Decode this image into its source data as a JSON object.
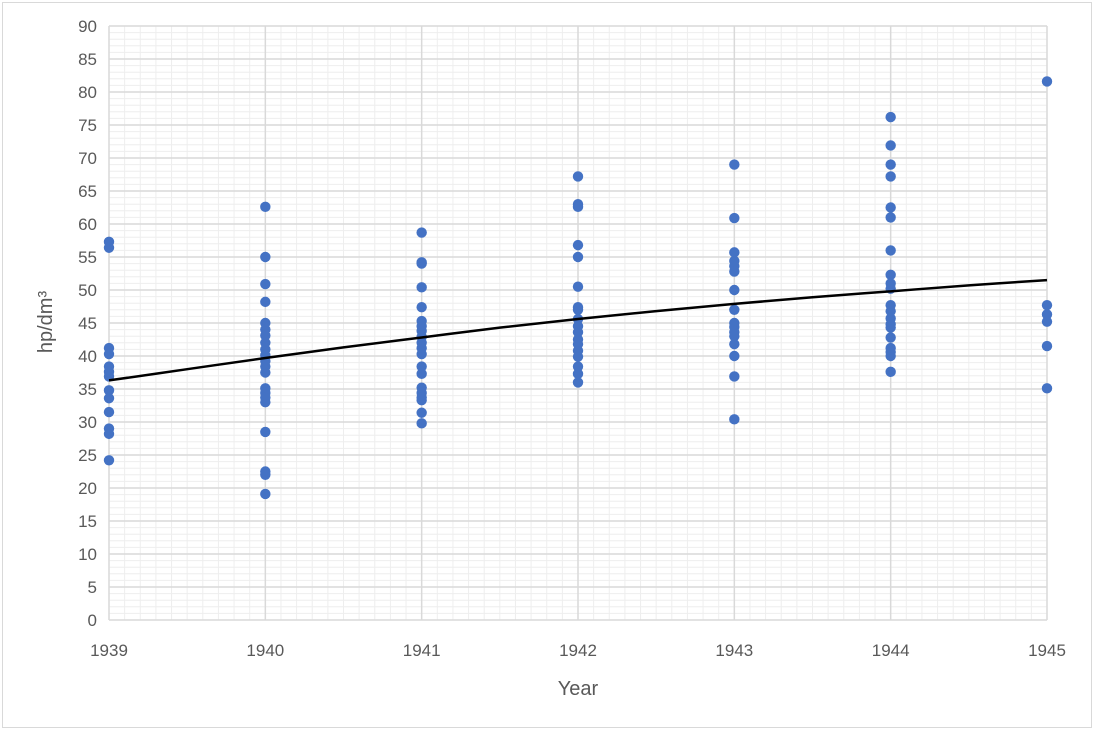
{
  "chart_data": {
    "type": "scatter",
    "title": "",
    "xlabel": "Year",
    "ylabel": "hp/dm³",
    "xlim": [
      1939,
      1945
    ],
    "ylim": [
      0,
      90
    ],
    "y_major_step": 5,
    "x_major_step": 1,
    "grid": true,
    "minor_grid": true,
    "legend": "none",
    "x_ticks": [
      "1939",
      "1940",
      "1941",
      "1942",
      "1943",
      "1944",
      "1945"
    ],
    "y_ticks": [
      "0",
      "5",
      "10",
      "15",
      "20",
      "25",
      "30",
      "35",
      "40",
      "45",
      "50",
      "55",
      "60",
      "65",
      "70",
      "75",
      "80",
      "85",
      "90"
    ],
    "colors": {
      "points": "#4472c4",
      "trendline": "#000000",
      "major_grid": "#d9d9d9",
      "minor_grid": "#eeeeee"
    },
    "series": [
      {
        "points": [
          [
            1939,
            57.3
          ],
          [
            1939,
            56.4
          ],
          [
            1939,
            41.2
          ],
          [
            1939,
            40.3
          ],
          [
            1939,
            38.4
          ],
          [
            1939,
            37.6
          ],
          [
            1939,
            36.9
          ],
          [
            1939,
            34.8
          ],
          [
            1939,
            33.6
          ],
          [
            1939,
            31.5
          ],
          [
            1939,
            29.0
          ],
          [
            1939,
            28.2
          ],
          [
            1939,
            24.2
          ],
          [
            1940,
            62.6
          ],
          [
            1940,
            55.0
          ],
          [
            1940,
            50.9
          ],
          [
            1940,
            48.2
          ],
          [
            1940,
            45.0
          ],
          [
            1940,
            44.0
          ],
          [
            1940,
            43.1
          ],
          [
            1940,
            42.0
          ],
          [
            1940,
            41.0
          ],
          [
            1940,
            40.1
          ],
          [
            1940,
            39.2
          ],
          [
            1940,
            38.4
          ],
          [
            1940,
            37.5
          ],
          [
            1940,
            35.1
          ],
          [
            1940,
            34.4
          ],
          [
            1940,
            33.7
          ],
          [
            1940,
            33.0
          ],
          [
            1940,
            28.5
          ],
          [
            1940,
            22.5
          ],
          [
            1940,
            22.0
          ],
          [
            1940,
            19.1
          ],
          [
            1941,
            58.7
          ],
          [
            1941,
            54.2
          ],
          [
            1941,
            54.0
          ],
          [
            1941,
            50.4
          ],
          [
            1941,
            47.4
          ],
          [
            1941,
            45.3
          ],
          [
            1941,
            44.5
          ],
          [
            1941,
            43.8
          ],
          [
            1941,
            42.9
          ],
          [
            1941,
            42.0
          ],
          [
            1941,
            41.2
          ],
          [
            1941,
            40.3
          ],
          [
            1941,
            38.4
          ],
          [
            1941,
            37.3
          ],
          [
            1941,
            35.2
          ],
          [
            1941,
            34.4
          ],
          [
            1941,
            33.7
          ],
          [
            1941,
            33.3
          ],
          [
            1941,
            31.4
          ],
          [
            1941,
            29.8
          ],
          [
            1942,
            67.2
          ],
          [
            1942,
            63.0
          ],
          [
            1942,
            62.6
          ],
          [
            1942,
            56.8
          ],
          [
            1942,
            55.0
          ],
          [
            1942,
            50.5
          ],
          [
            1942,
            47.4
          ],
          [
            1942,
            47.0
          ],
          [
            1942,
            45.6
          ],
          [
            1942,
            44.5
          ],
          [
            1942,
            43.6
          ],
          [
            1942,
            42.5
          ],
          [
            1942,
            41.8
          ],
          [
            1942,
            40.8
          ],
          [
            1942,
            39.9
          ],
          [
            1942,
            38.4
          ],
          [
            1942,
            37.3
          ],
          [
            1942,
            36.0
          ],
          [
            1943,
            69.0
          ],
          [
            1943,
            60.9
          ],
          [
            1943,
            55.7
          ],
          [
            1943,
            54.4
          ],
          [
            1943,
            53.6
          ],
          [
            1943,
            52.8
          ],
          [
            1943,
            50.0
          ],
          [
            1943,
            47.0
          ],
          [
            1943,
            45.0
          ],
          [
            1943,
            44.4
          ],
          [
            1943,
            43.6
          ],
          [
            1943,
            43.0
          ],
          [
            1943,
            41.8
          ],
          [
            1943,
            40.0
          ],
          [
            1943,
            36.9
          ],
          [
            1943,
            30.4
          ],
          [
            1944,
            76.2
          ],
          [
            1944,
            71.9
          ],
          [
            1944,
            69.0
          ],
          [
            1944,
            67.2
          ],
          [
            1944,
            62.5
          ],
          [
            1944,
            61.0
          ],
          [
            1944,
            56.0
          ],
          [
            1944,
            52.3
          ],
          [
            1944,
            51.0
          ],
          [
            1944,
            50.2
          ],
          [
            1944,
            47.7
          ],
          [
            1944,
            46.8
          ],
          [
            1944,
            45.7
          ],
          [
            1944,
            44.8
          ],
          [
            1944,
            44.3
          ],
          [
            1944,
            42.8
          ],
          [
            1944,
            41.2
          ],
          [
            1944,
            40.6
          ],
          [
            1944,
            40.0
          ],
          [
            1944,
            37.6
          ],
          [
            1945,
            81.6
          ],
          [
            1945,
            47.7
          ],
          [
            1945,
            46.3
          ],
          [
            1945,
            45.2
          ],
          [
            1945,
            41.5
          ],
          [
            1945,
            35.1
          ]
        ]
      }
    ],
    "trendline": {
      "type": "curve",
      "points": [
        [
          1939,
          36.3
        ],
        [
          1939.5,
          38.0
        ],
        [
          1940,
          39.7
        ],
        [
          1940.5,
          41.3
        ],
        [
          1941,
          42.8
        ],
        [
          1941.5,
          44.3
        ],
        [
          1942,
          45.6
        ],
        [
          1942.5,
          46.8
        ],
        [
          1943,
          47.9
        ],
        [
          1943.5,
          48.9
        ],
        [
          1944,
          49.8
        ],
        [
          1944.5,
          50.7
        ],
        [
          1945,
          51.5
        ]
      ]
    }
  }
}
